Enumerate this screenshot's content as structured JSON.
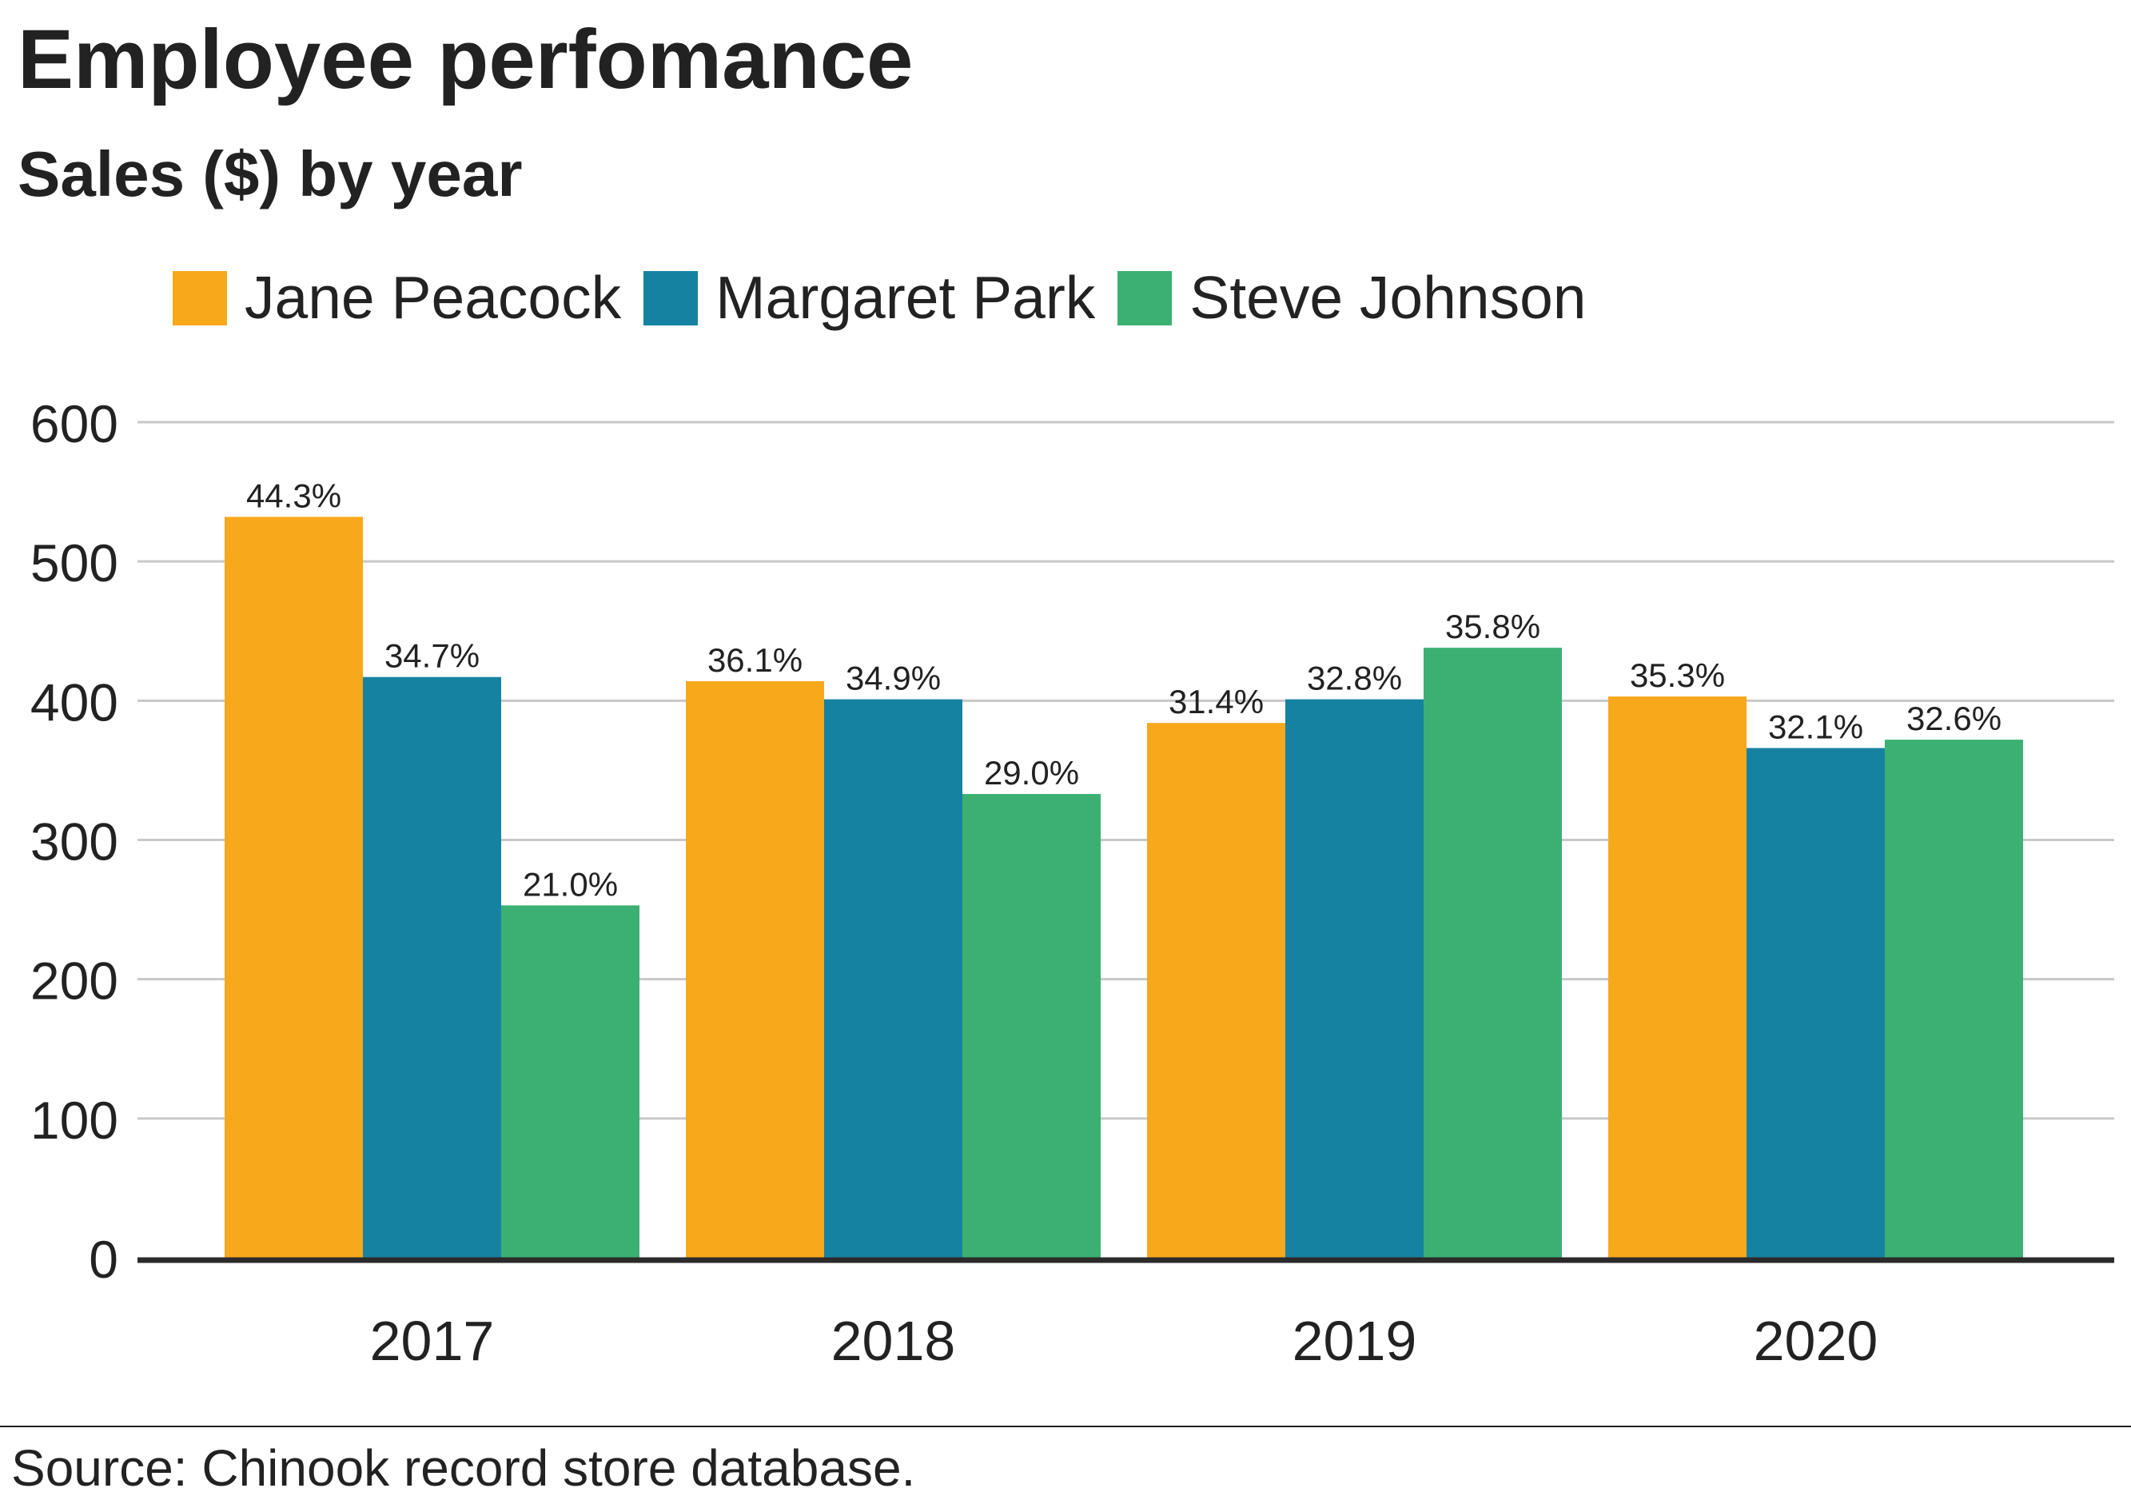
{
  "title": "Employee perfomance",
  "subtitle": "Sales ($) by year",
  "source": "Source: Chinook record store database.",
  "chart_data": {
    "type": "bar",
    "title": "Employee perfomance",
    "subtitle": "Sales ($) by year",
    "xlabel": "",
    "ylabel": "",
    "categories": [
      "2017",
      "2018",
      "2019",
      "2020"
    ],
    "ylim": [
      0,
      600
    ],
    "yticks": [
      0,
      100,
      200,
      300,
      400,
      500,
      600
    ],
    "grid": true,
    "legend_position": "top-left",
    "series": [
      {
        "name": "Jane Peacock",
        "color": "#F7A81B",
        "values": [
          532,
          414,
          384,
          403
        ],
        "labels": [
          "44.3%",
          "36.1%",
          "31.4%",
          "35.3%"
        ]
      },
      {
        "name": "Margaret Park",
        "color": "#1682A2",
        "values": [
          417,
          401,
          401,
          366
        ],
        "labels": [
          "34.7%",
          "34.9%",
          "32.8%",
          "32.1%"
        ]
      },
      {
        "name": "Steve Johnson",
        "color": "#3CB072",
        "values": [
          253,
          333,
          438,
          372
        ],
        "labels": [
          "21.0%",
          "29.0%",
          "35.8%",
          "32.6%"
        ]
      }
    ]
  }
}
